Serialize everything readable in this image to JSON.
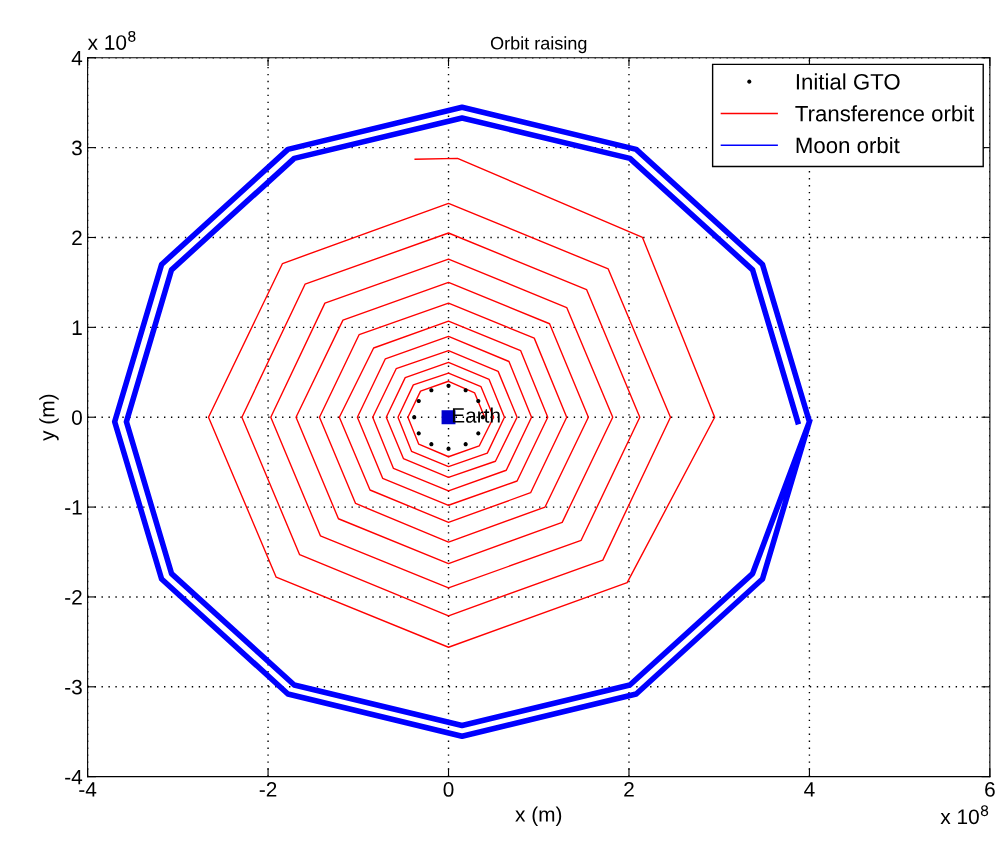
{
  "chart_data": {
    "type": "line",
    "title": "Orbit raising",
    "xlabel": "x (m)",
    "ylabel": "y (m)",
    "xlim": [
      -4,
      6
    ],
    "ylim": [
      -4,
      4
    ],
    "xticks": [
      -4,
      -2,
      0,
      2,
      4,
      6
    ],
    "yticks": [
      -4,
      -3,
      -2,
      -1,
      0,
      1,
      2,
      3,
      4
    ],
    "grid": true,
    "legend": "top right",
    "annotations": [
      {
        "text": "Earth",
        "x": 0.03,
        "y": 0
      },
      "x 10$^{8}$",
      "x 10$^{8}$"
    ],
    "series": [
      {
        "name": "Initial GTO",
        "type": "scatter",
        "marker": "circle",
        "color": "#000000",
        "x": [
          0.38,
          0.33,
          0.19,
          0,
          -0.19,
          -0.33,
          -0.38,
          -0.33,
          -0.19,
          0,
          0.19,
          0.33
        ],
        "values": [
          0,
          0.18,
          0.3,
          0.35,
          0.3,
          0.18,
          0,
          -0.18,
          -0.3,
          -0.35,
          -0.3,
          -0.18
        ]
      },
      {
        "name": "Transference orbit",
        "color": "#ff0000",
        "x": [
          0.4,
          0.29,
          0,
          -0.31,
          -0.45,
          -0.33,
          0,
          0.34,
          0.5,
          0.36,
          0,
          -0.39,
          -0.56,
          -0.41,
          0,
          0.43,
          0.62,
          0.45,
          0,
          -0.48,
          -0.69,
          -0.5,
          0,
          0.52,
          0.76,
          0.55,
          0,
          -0.58,
          -0.84,
          -0.61,
          0,
          0.64,
          0.92,
          0.67,
          0,
          -0.7,
          -1.01,
          -0.73,
          0,
          0.76,
          1.1,
          0.8,
          0,
          -0.83,
          -1.21,
          -0.87,
          0,
          0.91,
          1.31,
          0.95,
          0,
          -0.99,
          -1.43,
          -1.03,
          0,
          1.07,
          1.55,
          1.12,
          0,
          -1.17,
          -1.69,
          -1.22,
          0,
          1.26,
          1.82,
          1.31,
          0,
          -1.37,
          -1.97,
          -1.42,
          0,
          1.47,
          2.12,
          1.53,
          0,
          -1.59,
          -2.29,
          -1.65,
          0,
          1.71,
          2.46,
          1.77,
          0,
          -1.84,
          -2.66,
          -1.91,
          0,
          1.98,
          2.95,
          2.15,
          0.1,
          -0.37
        ],
        "values": [
          0,
          0.27,
          0.4,
          0.29,
          0,
          -0.3,
          -0.44,
          -0.32,
          0,
          0.34,
          0.49,
          0.36,
          0,
          -0.38,
          -0.55,
          -0.4,
          0,
          0.42,
          0.61,
          0.44,
          0,
          -0.46,
          -0.67,
          -0.49,
          0,
          0.51,
          0.74,
          0.54,
          0,
          -0.57,
          -0.82,
          -0.59,
          0,
          0.62,
          0.9,
          0.65,
          0,
          -0.68,
          -0.98,
          -0.71,
          0,
          0.74,
          1.07,
          0.77,
          0,
          -0.81,
          -1.17,
          -0.84,
          0,
          0.88,
          1.27,
          0.92,
          0,
          -0.96,
          -1.39,
          -1.0,
          0,
          1.04,
          1.5,
          1.08,
          0,
          -1.13,
          -1.63,
          -1.17,
          0,
          1.22,
          1.76,
          1.27,
          0,
          -1.32,
          -1.9,
          -1.37,
          0,
          1.42,
          2.05,
          1.48,
          0,
          -1.53,
          -2.21,
          -1.59,
          0,
          1.65,
          2.38,
          1.71,
          0,
          -1.78,
          -2.56,
          -1.84,
          0,
          2.0,
          2.88,
          2.87
        ]
      },
      {
        "name": "Moon orbit",
        "color": "#0000ff",
        "x": [
          3.87,
          3.37,
          2.01,
          0.15,
          -1.71,
          -3.07,
          -3.57,
          -3.07,
          -1.71,
          0.15,
          2.01,
          3.37,
          4.0,
          3.48,
          2.08,
          0.15,
          -1.78,
          -3.18,
          -3.7,
          -3.18,
          -1.78,
          0.15,
          2.08,
          3.48,
          4.0
        ],
        "values": [
          -0.05,
          1.64,
          2.88,
          3.33,
          2.88,
          1.64,
          -0.05,
          -1.74,
          -2.98,
          -3.43,
          -2.98,
          -1.74,
          -0.05,
          1.7,
          2.98,
          3.45,
          2.98,
          1.7,
          -0.05,
          -1.8,
          -3.08,
          -3.55,
          -3.08,
          -1.8,
          -0.05
        ]
      },
      {
        "type": "scatter",
        "marker": "square",
        "color": "#0000cc",
        "x": [
          0
        ],
        "values": [
          0
        ]
      }
    ]
  }
}
